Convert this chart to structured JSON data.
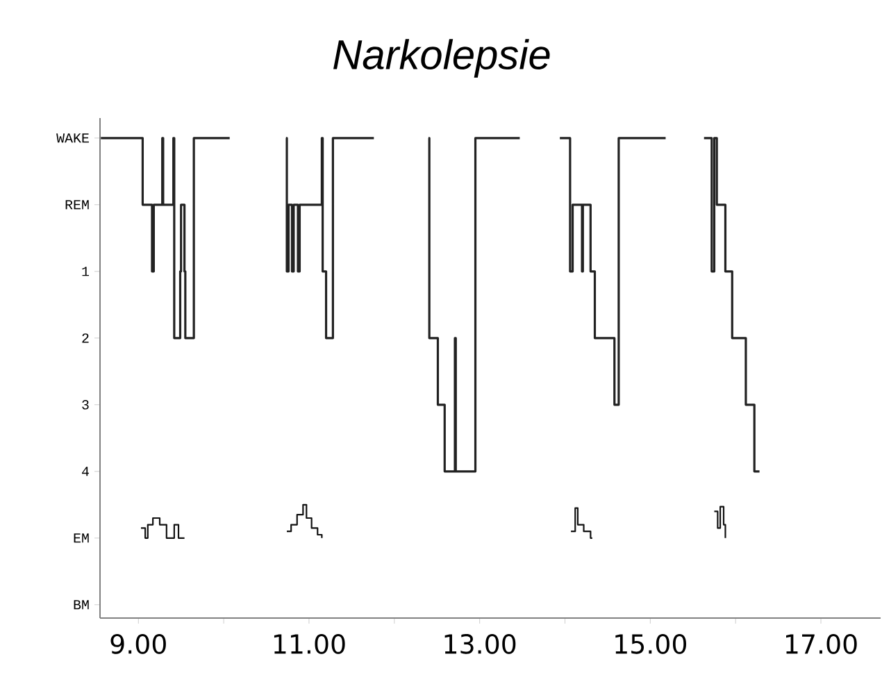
{
  "chart_data": {
    "type": "step",
    "title": "Narkolepsie",
    "xlim": [
      8.55,
      17.7
    ],
    "ylim": [
      6.2,
      -1.3
    ],
    "xticks": [
      {
        "value": 9,
        "label": "9.00"
      },
      {
        "value": 10,
        "label": null
      },
      {
        "value": 11,
        "label": "11.00"
      },
      {
        "value": 12,
        "label": null
      },
      {
        "value": 13,
        "label": "13.00"
      },
      {
        "value": 14,
        "label": null
      },
      {
        "value": 15,
        "label": "15.00"
      },
      {
        "value": 16,
        "label": null
      },
      {
        "value": 17,
        "label": "17.00"
      }
    ],
    "yticks": [
      {
        "value": -1,
        "label": "WAKE"
      },
      {
        "value": 0,
        "label": "REM"
      },
      1,
      2,
      3,
      4,
      {
        "value": 5,
        "label": "EM"
      },
      {
        "value": 6,
        "label": "BM"
      }
    ],
    "series": [
      {
        "color": "#222222",
        "x": [
          8.56,
          9.05,
          9.16,
          9.18,
          9.28,
          9.29,
          9.41,
          9.42,
          9.49,
          9.5,
          9.54,
          9.55,
          9.65,
          10.07,
          10.4,
          10.73,
          10.74,
          10.76,
          10.8,
          10.82,
          10.87,
          10.89,
          11.15,
          11.16,
          11.2,
          11.28,
          11.76,
          12.0,
          12.4,
          12.41,
          12.51,
          12.59,
          12.71,
          12.72,
          12.95,
          13.47,
          13.7,
          13.94,
          14.06,
          14.09,
          14.2,
          14.21,
          14.3,
          14.35,
          14.58,
          14.63,
          15.18,
          15.4,
          15.63,
          15.72,
          15.75,
          15.78,
          15.88,
          15.96,
          16.12,
          16.22,
          16.28
        ],
        "values": [
          -1,
          0,
          1,
          0,
          -1,
          0,
          -1,
          2,
          1,
          0,
          1,
          2,
          -1,
          -1,
          null,
          -1,
          1,
          0,
          1,
          0,
          1,
          0,
          -1,
          1,
          2,
          -1,
          -1,
          null,
          -1,
          2,
          3,
          4,
          2,
          4,
          -1,
          -1,
          null,
          -1,
          1,
          0,
          1,
          0,
          1,
          2,
          3,
          -1,
          -1,
          null,
          -1,
          1,
          -1,
          0,
          1,
          2,
          3,
          4,
          4
        ]
      },
      {
        "color": "#111111",
        "x": [
          9.03,
          9.08,
          9.11,
          9.17,
          9.25,
          9.33,
          9.42,
          9.47,
          9.54,
          10.0,
          10.74,
          10.79,
          10.86,
          10.93,
          10.97,
          11.03,
          11.1,
          11.15,
          12.0,
          14.07,
          14.12,
          14.15,
          14.22,
          14.3,
          14.32,
          15.0,
          15.75,
          15.79,
          15.82,
          15.86,
          15.88
        ],
        "values": [
          4.85,
          5,
          4.8,
          4.7,
          4.8,
          5,
          4.8,
          5,
          5,
          null,
          4.9,
          4.8,
          4.65,
          4.5,
          4.7,
          4.85,
          4.95,
          5,
          null,
          4.9,
          4.55,
          4.8,
          4.9,
          5,
          5,
          null,
          4.6,
          4.85,
          4.53,
          4.8,
          5
        ]
      }
    ]
  }
}
